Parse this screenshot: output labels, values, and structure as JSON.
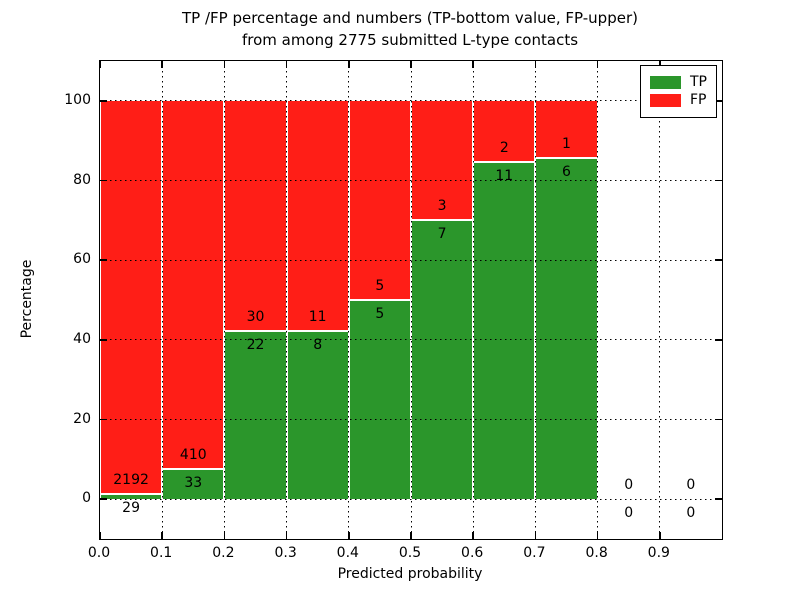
{
  "chart_data": {
    "type": "bar",
    "stacked": true,
    "title_line1": "TP /FP percentage and numbers (TP-bottom value, FP-upper)",
    "title_line2": "from among 2775 submitted L-type contacts",
    "xlabel": "Predicted probability",
    "ylabel": "Percentage",
    "total_contacts": 2775,
    "bin_width": 0.1,
    "categories": [
      0.0,
      0.1,
      0.2,
      0.3,
      0.4,
      0.5,
      0.6,
      0.7,
      0.8,
      0.9
    ],
    "series": [
      {
        "name": "TP",
        "color": "#2B962B",
        "counts": [
          29,
          33,
          22,
          8,
          5,
          7,
          11,
          6,
          0,
          0
        ],
        "percents": [
          1.31,
          7.45,
          42.31,
          42.11,
          50.0,
          70.0,
          84.62,
          85.71,
          0,
          0
        ]
      },
      {
        "name": "FP",
        "color": "#FF1E17",
        "counts": [
          2192,
          410,
          30,
          11,
          5,
          3,
          2,
          1,
          0,
          0
        ],
        "percents": [
          98.69,
          92.55,
          57.69,
          57.89,
          50.0,
          30.0,
          15.38,
          14.29,
          0,
          0
        ]
      }
    ],
    "xticks": [
      "0.0",
      "0.1",
      "0.2",
      "0.3",
      "0.4",
      "0.5",
      "0.6",
      "0.7",
      "0.8",
      "0.9"
    ],
    "yticks": [
      0,
      20,
      40,
      60,
      80,
      100
    ],
    "xlim": [
      0,
      1
    ],
    "ylim": [
      -10,
      110
    ],
    "grid": true,
    "legend_position": "upper right"
  }
}
